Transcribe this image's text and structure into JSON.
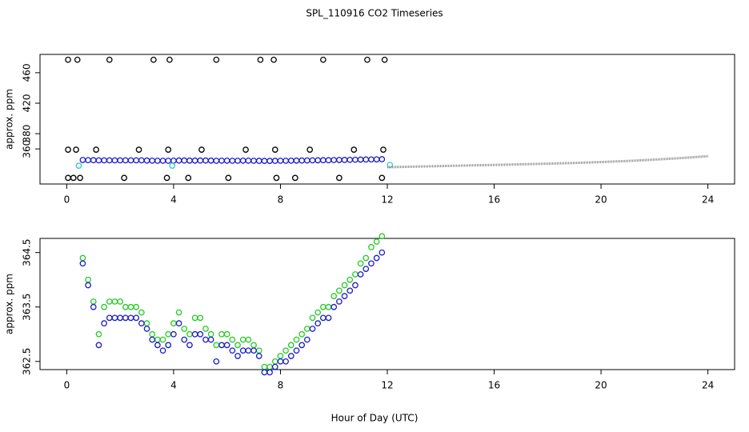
{
  "title": "SPL_110916  CO2 Timeseries",
  "x_label": "Hour of Day (UTC)",
  "chart_data": [
    {
      "type": "scatter",
      "y_label": "approx. ppm",
      "xlim": [
        -1,
        25
      ],
      "xticks": [
        0,
        4,
        8,
        12,
        16,
        20,
        24
      ],
      "ylim": [
        314,
        484
      ],
      "yticks": [
        360,
        380,
        420,
        460
      ],
      "series": [
        {
          "color": "#000000",
          "marker": "circle",
          "x": [
            0.05,
            0.05,
            0.05,
            0.25,
            0.35,
            0.4,
            0.5,
            1.1,
            1.6,
            2.15,
            2.7,
            3.25,
            3.75,
            3.8,
            3.85,
            4.55,
            5.05,
            5.6,
            6.05,
            6.7,
            7.25,
            7.75,
            7.8,
            7.85,
            8.55,
            9.1,
            9.6,
            10.2,
            10.75,
            11.25,
            11.8,
            11.85,
            11.9
          ],
          "values": [
            477,
            359,
            322,
            322,
            359,
            477,
            322,
            359,
            477,
            322,
            359,
            477,
            322,
            359,
            477,
            322,
            359,
            477,
            322,
            359,
            477,
            477,
            359,
            322,
            322,
            359,
            477,
            322,
            359,
            477,
            322,
            359,
            477
          ]
        },
        {
          "color": "#1a1acc",
          "marker": "circle",
          "x": [
            0.6,
            0.8,
            1,
            1.2,
            1.4,
            1.6,
            1.8,
            2,
            2.2,
            2.4,
            2.6,
            2.8,
            3,
            3.2,
            3.4,
            3.6,
            3.8,
            4,
            4.2,
            4.4,
            4.6,
            4.8,
            5,
            5.2,
            5.4,
            5.6,
            5.8,
            6,
            6.2,
            6.4,
            6.6,
            6.8,
            7,
            7.2,
            7.4,
            7.6,
            7.8,
            8,
            8.2,
            8.4,
            8.6,
            8.8,
            9,
            9.2,
            9.4,
            9.6,
            9.8,
            10,
            10.2,
            10.4,
            10.6,
            10.8,
            11,
            11.2,
            11.4,
            11.6,
            11.8
          ],
          "values": [
            345.5,
            345.3,
            345.2,
            345,
            345,
            345,
            345,
            345,
            345,
            345,
            345,
            345,
            344.8,
            344.6,
            344.5,
            344.5,
            344.5,
            344.6,
            344.8,
            344.8,
            344.7,
            344.7,
            344.8,
            344.8,
            344.7,
            344.5,
            344.6,
            344.6,
            344.5,
            344.5,
            344.6,
            344.6,
            344.5,
            344.4,
            344.3,
            344.3,
            344.4,
            344.5,
            344.5,
            344.6,
            344.7,
            344.8,
            344.9,
            345,
            345.1,
            345.2,
            345.2,
            345.4,
            345.5,
            345.6,
            345.7,
            345.8,
            346,
            346.1,
            346.2,
            346.3,
            346.5
          ]
        },
        {
          "color": "#33cccc",
          "marker": "circle",
          "x": [
            0.45,
            3.95,
            12.1
          ],
          "values": [
            338,
            338,
            339
          ]
        },
        {
          "color": "#888888",
          "marker": "line",
          "x": [
            12,
            13,
            14,
            15,
            16,
            17,
            18,
            19,
            20,
            21,
            22,
            23,
            24
          ],
          "values": [
            336,
            336.8,
            337.5,
            338.3,
            339,
            339.8,
            340.7,
            341.6,
            342.8,
            344.2,
            346,
            348,
            350.5
          ]
        }
      ]
    },
    {
      "type": "scatter",
      "y_label": "approx. ppm",
      "xlim": [
        -1,
        25
      ],
      "xticks": [
        0,
        4,
        8,
        12,
        16,
        20,
        24
      ],
      "ylim": [
        362.35,
        364.76
      ],
      "yticks": [
        362.5,
        363.5,
        364.5
      ],
      "series": [
        {
          "color": "#22cc22",
          "marker": "circle",
          "x": [
            0.6,
            0.8,
            1,
            1.2,
            1.4,
            1.6,
            1.8,
            2,
            2.2,
            2.4,
            2.6,
            2.8,
            3,
            3.2,
            3.4,
            3.6,
            3.8,
            4,
            4.2,
            4.4,
            4.6,
            4.8,
            5,
            5.2,
            5.4,
            5.6,
            5.8,
            6,
            6.2,
            6.4,
            6.6,
            6.8,
            7,
            7.2,
            7.4,
            7.6,
            7.8,
            8,
            8.2,
            8.4,
            8.6,
            8.8,
            9,
            9.2,
            9.4,
            9.6,
            9.8,
            10,
            10.2,
            10.4,
            10.6,
            10.8,
            11,
            11.2,
            11.4,
            11.6,
            11.8
          ],
          "values": [
            364.4,
            364.0,
            363.6,
            363.0,
            363.5,
            363.6,
            363.6,
            363.6,
            363.5,
            363.5,
            363.5,
            363.4,
            363.2,
            363.0,
            362.9,
            362.9,
            363.0,
            363.2,
            363.4,
            363.1,
            363.0,
            363.3,
            363.3,
            363.1,
            363.0,
            362.8,
            363.0,
            363.0,
            362.9,
            362.8,
            362.9,
            362.9,
            362.8,
            362.7,
            362.4,
            362.4,
            362.5,
            362.6,
            362.7,
            362.8,
            362.9,
            363.0,
            363.1,
            363.3,
            363.4,
            363.5,
            363.5,
            363.7,
            363.8,
            363.9,
            364.0,
            364.1,
            364.3,
            364.4,
            364.6,
            364.7,
            364.8
          ]
        },
        {
          "color": "#1a1acc",
          "marker": "circle",
          "x": [
            0.6,
            0.8,
            1,
            1.2,
            1.4,
            1.6,
            1.8,
            2,
            2.2,
            2.4,
            2.6,
            2.8,
            3,
            3.2,
            3.4,
            3.6,
            3.8,
            4,
            4.2,
            4.4,
            4.6,
            4.8,
            5,
            5.2,
            5.4,
            5.6,
            5.8,
            6,
            6.2,
            6.4,
            6.6,
            6.8,
            7,
            7.2,
            7.4,
            7.6,
            7.8,
            8,
            8.2,
            8.4,
            8.6,
            8.8,
            9,
            9.2,
            9.4,
            9.6,
            9.8,
            10,
            10.2,
            10.4,
            10.6,
            10.8,
            11,
            11.2,
            11.4,
            11.6,
            11.8
          ],
          "values": [
            364.3,
            363.9,
            363.5,
            362.8,
            363.2,
            363.3,
            363.3,
            363.3,
            363.3,
            363.3,
            363.3,
            363.2,
            363.1,
            362.9,
            362.8,
            362.7,
            362.8,
            363.0,
            363.2,
            362.9,
            362.8,
            363.0,
            363.0,
            362.9,
            362.9,
            362.5,
            362.8,
            362.8,
            362.7,
            362.6,
            362.7,
            362.7,
            362.7,
            362.6,
            362.3,
            362.3,
            362.4,
            362.5,
            362.5,
            362.6,
            362.7,
            362.8,
            362.9,
            363.1,
            363.2,
            363.3,
            363.3,
            363.5,
            363.6,
            363.7,
            363.8,
            363.9,
            364.1,
            364.2,
            364.3,
            364.4,
            364.5
          ]
        }
      ]
    }
  ]
}
